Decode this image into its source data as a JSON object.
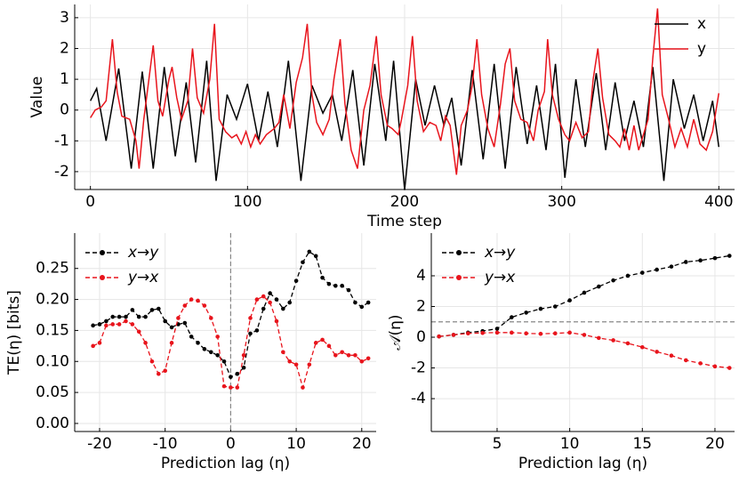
{
  "chart_data": [
    {
      "type": "line",
      "xlabel": "Time step",
      "ylabel": "Value",
      "xlim": [
        -10,
        410
      ],
      "ylim": [
        -2.58,
        3.43
      ],
      "xticks": [
        0,
        100,
        200,
        300,
        400
      ],
      "yticks": [
        -2,
        -1,
        0,
        1,
        2,
        3
      ],
      "grid": true,
      "legend": "upper right",
      "series": [
        {
          "name": "x",
          "color": "#000000",
          "x": [
            0,
            4,
            10,
            18,
            26,
            33,
            40,
            47,
            54,
            61,
            67,
            74,
            80,
            87,
            93,
            100,
            107,
            113,
            119,
            126,
            134,
            141,
            148,
            154,
            160,
            167,
            174,
            181,
            188,
            193,
            200,
            207,
            213,
            219,
            225,
            230,
            236,
            243,
            250,
            257,
            264,
            271,
            278,
            284,
            290,
            296,
            302,
            309,
            315,
            322,
            328,
            334,
            340,
            346,
            352,
            358,
            365,
            371,
            378,
            384,
            390,
            396,
            400
          ],
          "values": [
            0.3,
            0.7,
            -1.0,
            1.35,
            -1.9,
            1.25,
            -1.9,
            1.4,
            -1.5,
            0.9,
            -1.7,
            1.6,
            -2.3,
            0.5,
            -0.3,
            0.85,
            -1.0,
            0.6,
            -1.2,
            1.6,
            -2.3,
            0.8,
            -0.1,
            0.5,
            -1.0,
            1.3,
            -1.8,
            1.5,
            -1.0,
            1.6,
            -2.6,
            1.0,
            -0.5,
            0.8,
            -0.5,
            0.4,
            -1.8,
            1.3,
            -1.6,
            1.5,
            -1.9,
            1.4,
            -1.1,
            0.8,
            -1.3,
            1.5,
            -2.2,
            1.0,
            -1.2,
            1.2,
            -1.3,
            0.9,
            -1.0,
            0.3,
            -1.2,
            1.4,
            -2.3,
            1.0,
            -0.6,
            0.5,
            -1.0,
            0.3,
            -1.2
          ]
        },
        {
          "name": "y",
          "color": "#e8141c",
          "x": [
            0,
            3,
            7,
            10,
            14,
            17,
            20,
            25,
            29,
            31,
            34,
            37,
            40,
            43,
            46,
            50,
            52,
            55,
            58,
            62,
            65,
            68,
            72,
            76,
            79,
            82,
            86,
            90,
            93,
            96,
            99,
            102,
            105,
            108,
            112,
            117,
            120,
            123,
            127,
            131,
            135,
            138,
            141,
            144,
            148,
            152,
            155,
            159,
            162,
            166,
            170,
            174,
            178,
            182,
            185,
            189,
            192,
            196,
            198,
            202,
            205,
            208,
            212,
            216,
            220,
            223,
            226,
            229,
            233,
            236,
            240,
            243,
            246,
            249,
            253,
            257,
            261,
            264,
            267,
            270,
            274,
            278,
            282,
            285,
            289,
            291,
            294,
            298,
            302,
            305,
            309,
            313,
            317,
            320,
            323,
            326,
            330,
            334,
            337,
            340,
            343,
            346,
            349,
            352,
            355,
            358,
            361,
            364,
            368,
            372,
            376,
            380,
            384,
            388,
            392,
            396,
            400
          ],
          "values": [
            -0.25,
            0,
            0.1,
            0.3,
            2.3,
            0.6,
            -0.2,
            -0.3,
            -1.0,
            -1.9,
            -0.3,
            0.9,
            2.1,
            0.3,
            -0.2,
            1.0,
            1.4,
            0.4,
            -0.3,
            0.3,
            2.0,
            0.4,
            -0.1,
            1.0,
            2.8,
            -0.3,
            -0.7,
            -0.9,
            -0.8,
            -1.1,
            -0.7,
            -1.2,
            -0.8,
            -1.1,
            -0.8,
            -0.6,
            -0.4,
            0.5,
            -0.6,
            0.9,
            1.7,
            2.8,
            0.5,
            -0.4,
            -0.8,
            -0.3,
            1.0,
            2.3,
            0.2,
            -1.3,
            -1.9,
            0.0,
            0.8,
            2.4,
            0.5,
            -0.5,
            -0.6,
            -0.8,
            -0.3,
            0.8,
            2.4,
            0.3,
            -0.7,
            -0.4,
            -0.5,
            -1.0,
            -0.2,
            -0.5,
            -2.1,
            -0.5,
            0.0,
            0.8,
            2.3,
            0.5,
            -0.6,
            -1.2,
            0.2,
            1.5,
            2.0,
            0.3,
            -0.3,
            -0.4,
            -1.0,
            0.0,
            0.6,
            2.3,
            0.5,
            -0.3,
            -0.8,
            -1.0,
            -0.4,
            -0.9,
            -0.7,
            1.0,
            2.0,
            0.4,
            -0.8,
            -1.0,
            -1.2,
            -0.6,
            -1.3,
            -0.5,
            -1.3,
            -0.8,
            -0.3,
            1.7,
            3.3,
            0.5,
            -0.3,
            -1.2,
            -0.6,
            -1.2,
            -0.3,
            -1.1,
            -1.3,
            -0.7,
            0.55
          ]
        }
      ]
    },
    {
      "type": "line",
      "xlabel": "Prediction lag (η)",
      "ylabel": "TE(η) [bits]",
      "xlim": [
        -23.8,
        22.2
      ],
      "ylim": [
        -0.013,
        0.307
      ],
      "xticks": [
        -20,
        -10,
        0,
        10,
        20
      ],
      "yticks": [
        {
          "value": 0,
          "label": "0.00"
        },
        {
          "value": 0.05,
          "label": "0.05"
        },
        {
          "value": 0.1,
          "label": "0.10"
        },
        {
          "value": 0.15,
          "label": "0.15"
        },
        {
          "value": 0.2,
          "label": "0.20"
        },
        {
          "value": 0.25,
          "label": "0.25"
        }
      ],
      "grid": true,
      "legend": "upper left",
      "vline": 0,
      "x": [
        -21,
        -20,
        -19,
        -18,
        -17,
        -16,
        -15,
        -14,
        -13,
        -12,
        -11,
        -10,
        -9,
        -8,
        -7,
        -6,
        -5,
        -4,
        -3,
        -2,
        -1,
        0,
        1,
        2,
        3,
        4,
        5,
        6,
        7,
        8,
        9,
        10,
        11,
        12,
        13,
        14,
        15,
        16,
        17,
        18,
        19,
        20,
        21
      ],
      "series": [
        {
          "name": "x→y",
          "color": "#000000",
          "linestyle": "dashed",
          "marker": "o",
          "values": [
            0.158,
            0.16,
            0.165,
            0.172,
            0.172,
            0.172,
            0.183,
            0.172,
            0.172,
            0.183,
            0.185,
            0.165,
            0.155,
            0.16,
            0.162,
            0.14,
            0.13,
            0.12,
            0.115,
            0.11,
            0.1,
            0.075,
            0.08,
            0.09,
            0.145,
            0.15,
            0.185,
            0.21,
            0.2,
            0.185,
            0.195,
            0.23,
            0.26,
            0.277,
            0.27,
            0.235,
            0.225,
            0.222,
            0.222,
            0.215,
            0.195,
            0.188,
            0.195
          ]
        },
        {
          "name": "y→x",
          "color": "#e8141c",
          "linestyle": "dashed",
          "marker": "o",
          "values": [
            0.125,
            0.13,
            0.158,
            0.16,
            0.16,
            0.165,
            0.16,
            0.148,
            0.13,
            0.1,
            0.08,
            0.085,
            0.13,
            0.17,
            0.19,
            0.2,
            0.198,
            0.19,
            0.17,
            0.14,
            0.06,
            0.058,
            0.058,
            0.11,
            0.17,
            0.2,
            0.205,
            0.195,
            0.165,
            0.115,
            0.1,
            0.095,
            0.058,
            0.095,
            0.13,
            0.135,
            0.125,
            0.11,
            0.115,
            0.11,
            0.11,
            0.1,
            0.105
          ]
        }
      ]
    },
    {
      "type": "line",
      "xlabel": "Prediction lag (η)",
      "ylabel": "𝒜(η)",
      "xlim": [
        0.47,
        21.35
      ],
      "ylim": [
        -6.14,
        6.78
      ],
      "xticks": [
        5,
        10,
        15,
        20
      ],
      "yticks": [
        -4,
        -2,
        0,
        2,
        4
      ],
      "grid": true,
      "legend": "upper left",
      "hline": 1,
      "x": [
        1,
        2,
        3,
        4,
        5,
        6,
        7,
        8,
        9,
        10,
        11,
        12,
        13,
        14,
        15,
        16,
        17,
        18,
        19,
        20,
        21
      ],
      "series": [
        {
          "name": "x→y",
          "color": "#000000",
          "linestyle": "dashed",
          "marker": "o",
          "values": [
            0.05,
            0.15,
            0.3,
            0.4,
            0.55,
            1.3,
            1.6,
            1.85,
            2.0,
            2.4,
            2.9,
            3.3,
            3.7,
            4.0,
            4.2,
            4.4,
            4.6,
            4.9,
            5.0,
            5.15,
            5.3
          ]
        },
        {
          "name": "y→x",
          "color": "#e8141c",
          "linestyle": "dashed",
          "marker": "o",
          "values": [
            0.05,
            0.15,
            0.25,
            0.28,
            0.3,
            0.3,
            0.25,
            0.22,
            0.25,
            0.3,
            0.15,
            -0.05,
            -0.2,
            -0.4,
            -0.65,
            -0.95,
            -1.2,
            -1.5,
            -1.7,
            -1.9,
            -2.0
          ]
        }
      ]
    }
  ]
}
